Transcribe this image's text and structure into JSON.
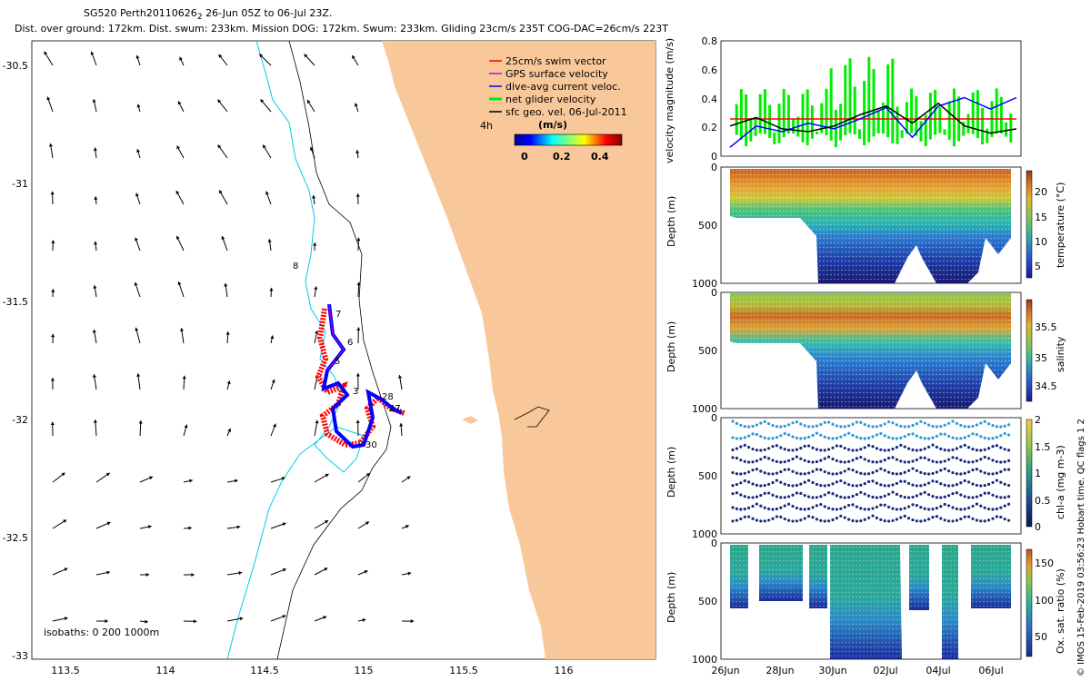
{
  "header": {
    "title": "SG520 Perth20110626",
    "title_sub": "2",
    "title_range": " 26-Jun 05Z to 06-Jul 23Z.",
    "stats": "Dist. over ground: 172km. Dist. swum: 233km. Mission DOG: 172km. Swum: 233km. Gliding 23cm/s 235T COG-DAC=26cm/s 223T"
  },
  "colors": {
    "land": "#f9c89a",
    "isobath_200": "#00ccee",
    "swim": "#ff0000",
    "gps": "#cc00cc",
    "dac": "#0000ff",
    "net": "#00ee00",
    "geo": "#000000"
  },
  "map": {
    "x_ticks": [
      "113.5",
      "114",
      "114.5",
      "115",
      "115.5",
      "116"
    ],
    "y_ticks": [
      "-30.5",
      "-31",
      "-31.5",
      "-32",
      "-32.5",
      "-33"
    ],
    "isobath_label": "isobaths: 0   200   1000m",
    "legend_items": [
      {
        "key": "swim",
        "label": "25cm/s swim vector"
      },
      {
        "key": "gps",
        "label": "GPS surface velocity"
      },
      {
        "key": "dac",
        "label": "dive-avg current veloc."
      },
      {
        "key": "net",
        "label": "net glider velocity"
      },
      {
        "key": "geo",
        "label": "sfc geo. vel. 06-Jul-2011"
      }
    ],
    "time_label": "4h",
    "colorbar_title": "(m/s)",
    "colorbar_ticks": [
      "0",
      "0.2",
      "0.4"
    ],
    "day_labels": [
      "8",
      "7",
      "6",
      "5",
      "3",
      "28",
      "27",
      "30"
    ]
  },
  "panels": {
    "shared_x_ticks": [
      "26Jun",
      "28Jun",
      "30Jun",
      "02Jul",
      "04Jul",
      "06Jul"
    ],
    "velocity": {
      "ylabel": "velocity magnitude (m/s)",
      "y_ticks": [
        "0",
        "0.2",
        "0.4",
        "0.6",
        "0.8"
      ]
    },
    "temperature": {
      "ylabel": "Depth (m)",
      "y_ticks": [
        "0",
        "500",
        "1000"
      ],
      "colorbar_label": "temperature (°C)",
      "colorbar_ticks": [
        "20",
        "15",
        "10",
        "5"
      ]
    },
    "salinity": {
      "ylabel": "Depth (m)",
      "y_ticks": [
        "0",
        "500",
        "1000"
      ],
      "colorbar_label": "salinity",
      "colorbar_ticks": [
        "35.5",
        "35",
        "34.5"
      ]
    },
    "chla": {
      "ylabel": "Depth (m)",
      "y_ticks": [
        "0",
        "500",
        "1000"
      ],
      "colorbar_label": "chl-a (mg m-3)",
      "colorbar_ticks": [
        "2",
        "1.5",
        "1",
        "0.5",
        "0"
      ]
    },
    "oxygen": {
      "ylabel": "Depth (m)",
      "y_ticks": [
        "0",
        "500",
        "1000"
      ],
      "colorbar_label": "Ox. sat. ratio (%)",
      "colorbar_ticks": [
        "150",
        "100",
        "50"
      ]
    }
  },
  "credits": "© IMOS 15-Feb-2019 03:56:23 Hobart time. QC flags 1  2",
  "chart_data": [
    {
      "type": "line",
      "title": "velocity magnitude",
      "xlabel": "",
      "ylabel": "velocity magnitude (m/s)",
      "x": [
        0,
        1,
        2,
        3,
        4,
        5,
        6,
        7,
        8,
        9,
        10,
        11
      ],
      "x_ticks_days": [
        "26Jun",
        "28Jun",
        "30Jun",
        "02Jul",
        "04Jul",
        "06Jul"
      ],
      "ylim": [
        0,
        0.8
      ],
      "series": [
        {
          "name": "25cm/s swim vector",
          "values": [
            0.25,
            0.25,
            0.25,
            0.25,
            0.25,
            0.25,
            0.25,
            0.25,
            0.25,
            0.25,
            0.25,
            0.25
          ]
        },
        {
          "name": "dive-avg current veloc.",
          "values": [
            0.05,
            0.2,
            0.16,
            0.22,
            0.18,
            0.25,
            0.33,
            0.12,
            0.34,
            0.4,
            0.32,
            0.4
          ]
        },
        {
          "name": "sfc geo. vel. 06-Jul-2011",
          "values": [
            0.2,
            0.26,
            0.18,
            0.16,
            0.2,
            0.28,
            0.34,
            0.22,
            0.36,
            0.2,
            0.15,
            0.18
          ]
        }
      ]
    },
    {
      "type": "heatmap",
      "title": "temperature",
      "ylabel": "Depth (m)",
      "ylim": [
        1000,
        0
      ],
      "colorbar_label": "temperature (°C)",
      "color_range": [
        3,
        23
      ]
    },
    {
      "type": "heatmap",
      "title": "salinity",
      "ylabel": "Depth (m)",
      "ylim": [
        1000,
        0
      ],
      "colorbar_label": "salinity",
      "color_range": [
        34.3,
        35.9
      ]
    },
    {
      "type": "scatter",
      "title": "chl-a",
      "ylabel": "Depth (m)",
      "ylim": [
        1000,
        0
      ],
      "colorbar_label": "chl-a (mg m-3)",
      "color_range": [
        0,
        2
      ]
    },
    {
      "type": "heatmap",
      "title": "oxygen saturation",
      "ylabel": "Depth (m)",
      "ylim": [
        1000,
        0
      ],
      "colorbar_label": "Ox. sat. ratio (%)",
      "color_range": [
        20,
        170
      ]
    }
  ]
}
